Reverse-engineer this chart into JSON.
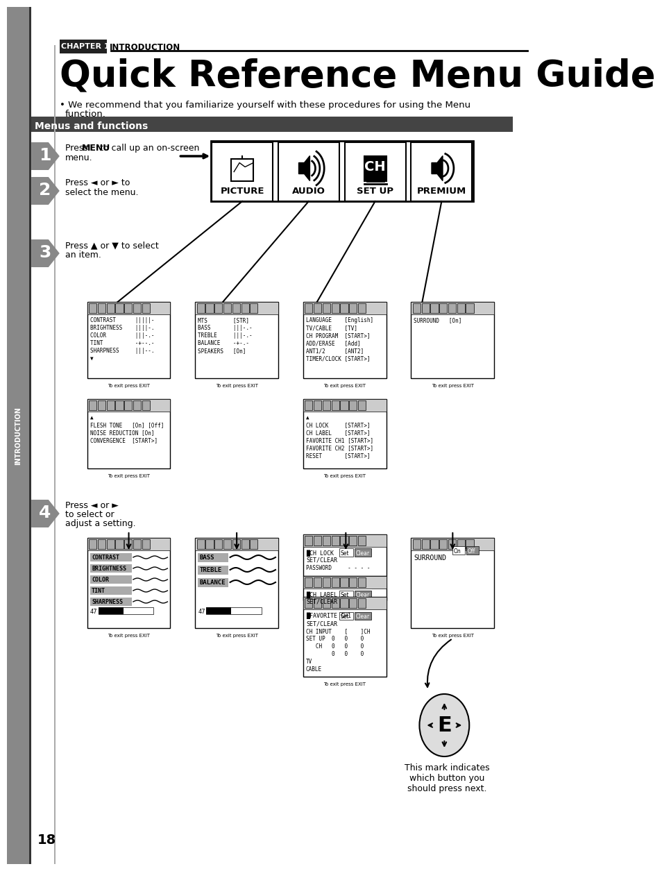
{
  "title": "Quick Reference Menu Guide",
  "chapter": "CHAPTER 1",
  "chapter_intro": "INTRODUCTION",
  "subtitle": "We recommend that you familiarize yourself with these procedures for using the Menu\nfunction.",
  "section_title": "Menus and functions",
  "bg_color": "#ffffff",
  "sidebar_color": "#555555",
  "section_bar_color": "#444444",
  "step1_text": "Press MENU to call up an on-screen\nmenu.",
  "step2_text": "Press  or  to\nselect the menu.",
  "step3_text": "Press  or  to select\nan item.",
  "step4_text": "Press  or \nto select or\nadjust a setting.",
  "menu_items": [
    "PICTURE",
    "AUDIO",
    "SET UP",
    "PREMIUM"
  ],
  "footer_text": "This mark indicates\nwhich button you\nshould press next.",
  "page_number": "18"
}
